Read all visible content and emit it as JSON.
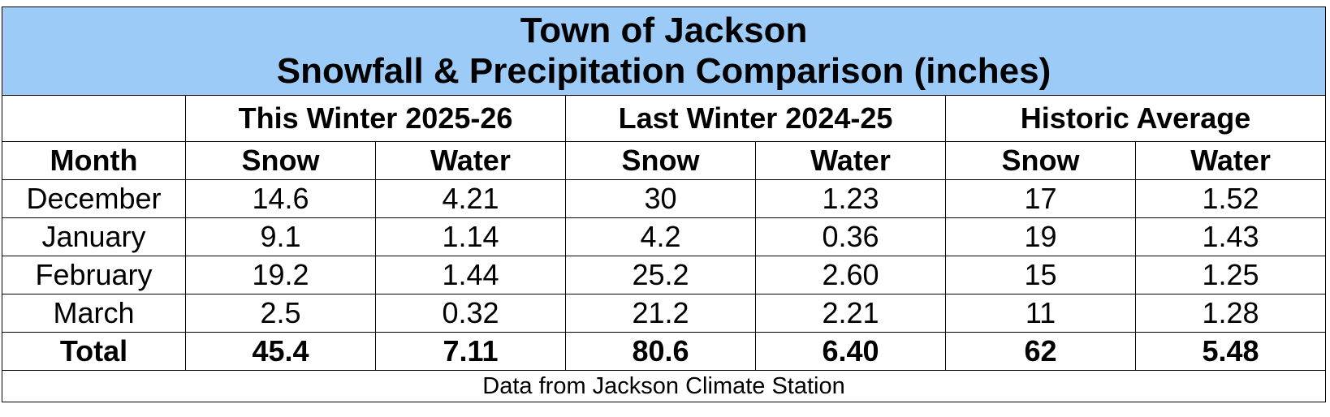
{
  "title": {
    "line1": "Town of Jackson",
    "line2": "Snowfall & Precipitation Comparison (inches)"
  },
  "groups": [
    "This Winter 2025-26",
    "Last Winter 2024-25",
    "Historic Average"
  ],
  "columns": {
    "month": "Month",
    "snow": "Snow",
    "water": "Water"
  },
  "rows": [
    {
      "month": "December",
      "values": [
        "14.6",
        "4.21",
        "30",
        "1.23",
        "17",
        "1.52"
      ]
    },
    {
      "month": "January",
      "values": [
        "9.1",
        "1.14",
        "4.2",
        "0.36",
        "19",
        "1.43"
      ]
    },
    {
      "month": "February",
      "values": [
        "19.2",
        "1.44",
        "25.2",
        "2.60",
        "15",
        "1.25"
      ]
    },
    {
      "month": "March",
      "values": [
        "2.5",
        "0.32",
        "21.2",
        "2.21",
        "11",
        "1.28"
      ]
    }
  ],
  "total": {
    "month": "Total",
    "values": [
      "45.4",
      "7.11",
      "80.6",
      "6.40",
      "62",
      "5.48"
    ]
  },
  "footer": "Data from Jackson Climate Station",
  "colors": {
    "title_background": "#9dcbf8"
  }
}
